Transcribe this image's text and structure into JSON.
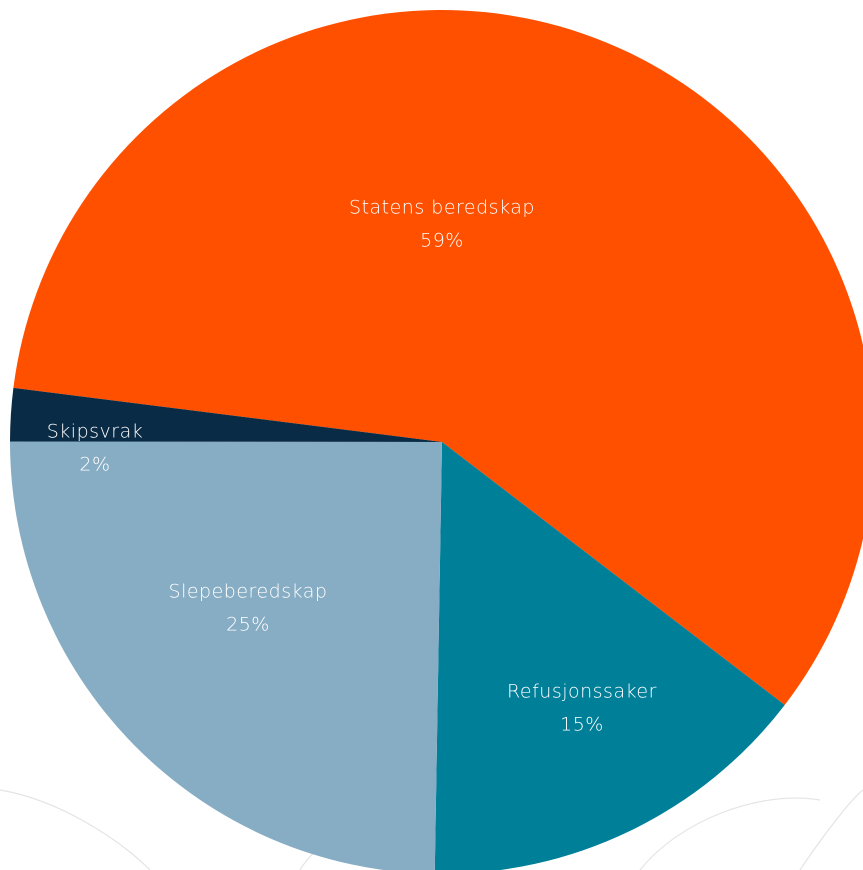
{
  "chart_data": {
    "type": "pie",
    "categories": [
      "Statens beredskap",
      "Refusjonssaker",
      "Slepeberedskap",
      "Skipsvrak"
    ],
    "values": [
      59,
      15,
      25,
      2
    ],
    "value_labels": [
      "59%",
      "15%",
      "25%",
      "2%"
    ],
    "colors": [
      "#ff5000",
      "#007f99",
      "#87adc4",
      "#0a2b45"
    ]
  }
}
